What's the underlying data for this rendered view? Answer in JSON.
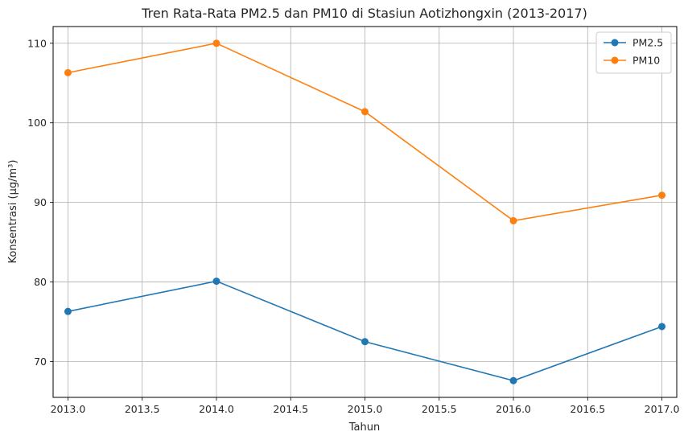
{
  "chart_data": {
    "type": "line",
    "title": "Tren Rata-Rata PM2.5 dan PM10 di Stasiun Aotizhongxin (2013-2017)",
    "xlabel": "Tahun",
    "ylabel": "Konsentrasi (µg/m³)",
    "x": [
      2013,
      2014,
      2015,
      2016,
      2017
    ],
    "xlim": [
      2012.9,
      2017.1
    ],
    "ylim": [
      65.5,
      112.1
    ],
    "xticks": [
      "2013.0",
      "2013.5",
      "2014.0",
      "2014.5",
      "2015.0",
      "2015.5",
      "2016.0",
      "2016.5",
      "2017.0"
    ],
    "yticks": [
      "70",
      "80",
      "90",
      "100",
      "110"
    ],
    "grid": true,
    "legend_position": "top-right",
    "series": [
      {
        "name": "PM2.5",
        "color": "#1f77b4",
        "values": [
          76.3,
          80.1,
          72.5,
          67.6,
          74.4
        ]
      },
      {
        "name": "PM10",
        "color": "#ff7f0e",
        "values": [
          106.3,
          110.0,
          101.4,
          87.7,
          90.9
        ]
      }
    ]
  }
}
